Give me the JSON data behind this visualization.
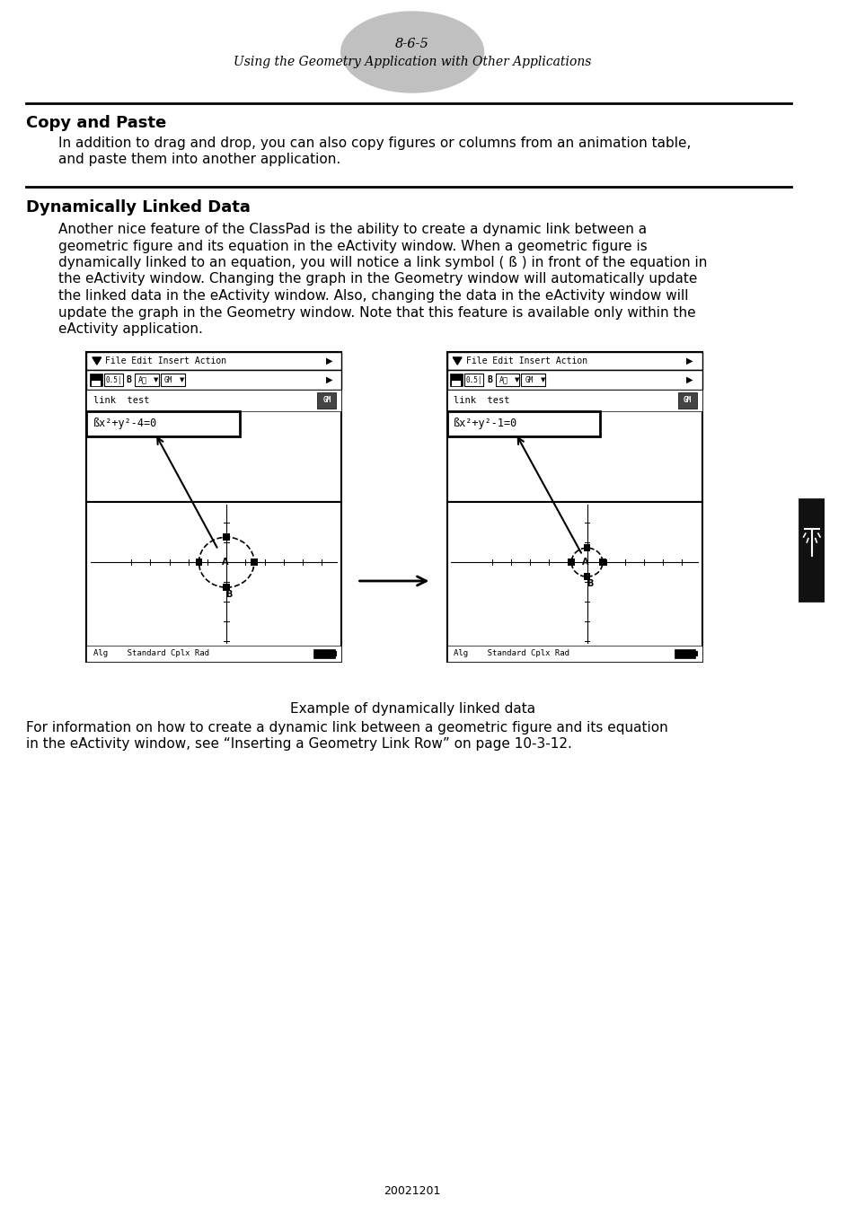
{
  "page_number": "8-6-5",
  "page_subtitle": "Using the Geometry Application with Other Applications",
  "section1_title": "Copy and Paste",
  "section1_body_line1": "In addition to drag and drop, you can also copy figures or columns from an animation table,",
  "section1_body_line2": "and paste them into another application.",
  "section2_title": "Dynamically Linked Data",
  "section2_body": [
    "Another nice feature of the ClassPad is the ability to create a dynamic link between a",
    "geometric figure and its equation in the eActivity window. When a geometric figure is",
    "dynamically linked to an equation, you will notice a link symbol ( ß ) in front of the equation in",
    "the eActivity window. Changing the graph in the Geometry window will automatically update",
    "the linked data in the eActivity window. Also, changing the data in the eActivity window will",
    "update the graph in the Geometry window. Note that this feature is available only within the",
    "eActivity application."
  ],
  "caption": "Example of dynamically linked data",
  "footer_line1": "For information on how to create a dynamic link between a geometric figure and its equation",
  "footer_line2": "in the eActivity window, see “Inserting a Geometry Link Row” on page 10-3-12.",
  "bottom_text": "20021201",
  "bg_color": "#ffffff",
  "ellipse_color": "#c0c0c0",
  "left_screen_eq": "ßx²+y²-4=0",
  "right_screen_eq": "ßx²+y²-1=0",
  "hr_color": "#000000",
  "sidebar_color": "#1a1a1a"
}
